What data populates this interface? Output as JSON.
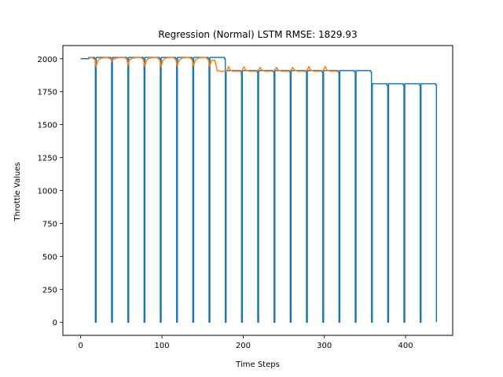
{
  "chart_data": {
    "type": "line",
    "title": "Regression (Normal) LSTM RMSE: 1829.93",
    "xlabel": "Time Steps",
    "ylabel": "Throttle Values",
    "xlim": [
      -22,
      458
    ],
    "ylim": [
      -100,
      2100
    ],
    "xticks": [
      "0",
      "100",
      "200",
      "300",
      "400"
    ],
    "yticks": [
      "0",
      "250",
      "500",
      "750",
      "1000",
      "1250",
      "1500",
      "1750",
      "2000"
    ],
    "grid": false,
    "legend": "none",
    "series": [
      {
        "color": "#1f77b4",
        "points": [
          [
            0,
            2000
          ],
          [
            10,
            2000
          ],
          [
            10,
            2010
          ],
          [
            17,
            2010
          ],
          [
            17,
            2000
          ],
          [
            18,
            2000
          ],
          [
            18,
            0
          ],
          [
            19,
            0
          ],
          [
            19,
            2010
          ],
          [
            37,
            2010
          ],
          [
            37,
            2000
          ],
          [
            38,
            2000
          ],
          [
            38,
            0
          ],
          [
            39,
            0
          ],
          [
            39,
            2010
          ],
          [
            57,
            2010
          ],
          [
            57,
            2000
          ],
          [
            58,
            2000
          ],
          [
            58,
            0
          ],
          [
            59,
            0
          ],
          [
            59,
            2010
          ],
          [
            77,
            2010
          ],
          [
            77,
            2000
          ],
          [
            78,
            2000
          ],
          [
            78,
            0
          ],
          [
            79,
            0
          ],
          [
            79,
            2010
          ],
          [
            97,
            2010
          ],
          [
            97,
            2000
          ],
          [
            98,
            2000
          ],
          [
            98,
            0
          ],
          [
            99,
            0
          ],
          [
            99,
            2010
          ],
          [
            117,
            2010
          ],
          [
            117,
            2000
          ],
          [
            118,
            2000
          ],
          [
            118,
            0
          ],
          [
            119,
            0
          ],
          [
            119,
            2010
          ],
          [
            137,
            2010
          ],
          [
            137,
            2000
          ],
          [
            138,
            2000
          ],
          [
            138,
            0
          ],
          [
            139,
            0
          ],
          [
            139,
            2010
          ],
          [
            157,
            2010
          ],
          [
            157,
            2000
          ],
          [
            158,
            2000
          ],
          [
            158,
            0
          ],
          [
            159,
            0
          ],
          [
            159,
            2010
          ],
          [
            177,
            2010
          ],
          [
            177,
            2000
          ],
          [
            178,
            2000
          ],
          [
            178,
            0
          ],
          [
            179,
            0
          ],
          [
            179,
            1910
          ],
          [
            197,
            1910
          ],
          [
            197,
            1900
          ],
          [
            198,
            1900
          ],
          [
            198,
            0
          ],
          [
            199,
            0
          ],
          [
            199,
            1910
          ],
          [
            217,
            1910
          ],
          [
            217,
            1900
          ],
          [
            218,
            1900
          ],
          [
            218,
            0
          ],
          [
            219,
            0
          ],
          [
            219,
            1910
          ],
          [
            237,
            1910
          ],
          [
            237,
            1900
          ],
          [
            238,
            1900
          ],
          [
            238,
            0
          ],
          [
            239,
            0
          ],
          [
            239,
            1910
          ],
          [
            257,
            1910
          ],
          [
            257,
            1900
          ],
          [
            258,
            1900
          ],
          [
            258,
            0
          ],
          [
            259,
            0
          ],
          [
            259,
            1910
          ],
          [
            277,
            1910
          ],
          [
            277,
            1900
          ],
          [
            278,
            1900
          ],
          [
            278,
            0
          ],
          [
            279,
            0
          ],
          [
            279,
            1910
          ],
          [
            297,
            1910
          ],
          [
            297,
            1900
          ],
          [
            298,
            1900
          ],
          [
            298,
            0
          ],
          [
            299,
            0
          ],
          [
            299,
            1910
          ],
          [
            317,
            1910
          ],
          [
            317,
            1900
          ],
          [
            318,
            1900
          ],
          [
            318,
            0
          ],
          [
            319,
            0
          ],
          [
            319,
            1910
          ],
          [
            337,
            1910
          ],
          [
            337,
            1900
          ],
          [
            338,
            1900
          ],
          [
            338,
            0
          ],
          [
            339,
            0
          ],
          [
            339,
            1910
          ],
          [
            357,
            1910
          ],
          [
            357,
            1900
          ],
          [
            358,
            1900
          ],
          [
            358,
            0
          ],
          [
            359,
            0
          ],
          [
            359,
            1810
          ],
          [
            377,
            1810
          ],
          [
            377,
            1800
          ],
          [
            378,
            1800
          ],
          [
            378,
            0
          ],
          [
            379,
            0
          ],
          [
            379,
            1810
          ],
          [
            397,
            1810
          ],
          [
            397,
            1800
          ],
          [
            398,
            1800
          ],
          [
            398,
            0
          ],
          [
            399,
            0
          ],
          [
            399,
            1810
          ],
          [
            417,
            1810
          ],
          [
            417,
            1800
          ],
          [
            418,
            1800
          ],
          [
            418,
            0
          ],
          [
            419,
            0
          ],
          [
            419,
            1810
          ],
          [
            437,
            1810
          ],
          [
            437,
            1800
          ],
          [
            438,
            1800
          ],
          [
            438,
            0
          ]
        ]
      },
      {
        "color": "#ff7f0e",
        "points": [
          [
            10,
            2005
          ],
          [
            14,
            2008
          ],
          [
            18,
            1990
          ],
          [
            19,
            1940
          ],
          [
            21,
            1985
          ],
          [
            24,
            2002
          ],
          [
            28,
            2007
          ],
          [
            33,
            2008
          ],
          [
            37,
            1998
          ],
          [
            38,
            1980
          ],
          [
            40,
            1995
          ],
          [
            44,
            2005
          ],
          [
            49,
            2008
          ],
          [
            54,
            2008
          ],
          [
            57,
            1995
          ],
          [
            58,
            1950
          ],
          [
            60,
            1990
          ],
          [
            64,
            2005
          ],
          [
            70,
            2008
          ],
          [
            74,
            2008
          ],
          [
            77,
            1993
          ],
          [
            79,
            1945
          ],
          [
            81,
            1990
          ],
          [
            85,
            2005
          ],
          [
            90,
            2008
          ],
          [
            94,
            2008
          ],
          [
            97,
            1993
          ],
          [
            99,
            1940
          ],
          [
            101,
            1988
          ],
          [
            105,
            2005
          ],
          [
            110,
            2008
          ],
          [
            114,
            2008
          ],
          [
            117,
            1993
          ],
          [
            119,
            1945
          ],
          [
            121,
            1988
          ],
          [
            125,
            2005
          ],
          [
            130,
            2008
          ],
          [
            134,
            2008
          ],
          [
            137,
            1993
          ],
          [
            139,
            1945
          ],
          [
            141,
            1988
          ],
          [
            145,
            2005
          ],
          [
            150,
            2008
          ],
          [
            154,
            2008
          ],
          [
            157,
            1993
          ],
          [
            159,
            1945
          ],
          [
            161,
            1985
          ],
          [
            165,
            1990
          ],
          [
            168,
            1910
          ],
          [
            172,
            1905
          ],
          [
            177,
            1905
          ],
          [
            180,
            1910
          ],
          [
            182,
            1940
          ],
          [
            184,
            1915
          ],
          [
            188,
            1905
          ],
          [
            196,
            1905
          ],
          [
            199,
            1915
          ],
          [
            201,
            1938
          ],
          [
            203,
            1915
          ],
          [
            207,
            1905
          ],
          [
            216,
            1905
          ],
          [
            219,
            1915
          ],
          [
            221,
            1935
          ],
          [
            223,
            1915
          ],
          [
            227,
            1905
          ],
          [
            236,
            1905
          ],
          [
            239,
            1915
          ],
          [
            241,
            1935
          ],
          [
            243,
            1915
          ],
          [
            247,
            1905
          ],
          [
            256,
            1905
          ],
          [
            259,
            1915
          ],
          [
            261,
            1935
          ],
          [
            263,
            1915
          ],
          [
            267,
            1905
          ],
          [
            276,
            1905
          ],
          [
            279,
            1915
          ],
          [
            281,
            1940
          ],
          [
            283,
            1915
          ],
          [
            287,
            1905
          ],
          [
            296,
            1905
          ],
          [
            299,
            1915
          ],
          [
            301,
            1940
          ],
          [
            303,
            1915
          ],
          [
            307,
            1905
          ],
          [
            313,
            1905
          ],
          [
            317,
            1905
          ]
        ]
      }
    ]
  }
}
